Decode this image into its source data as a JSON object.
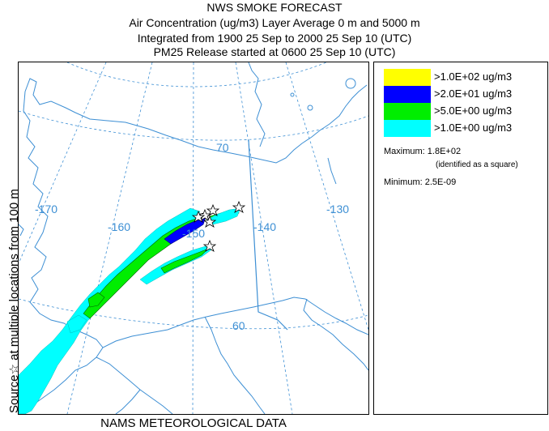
{
  "header": {
    "title": "NWS SMOKE FORECAST",
    "line2": "Air Concentration (ug/m3) Layer Average    0 m and  5000 m",
    "line3": "Integrated from 1900 25 Sep to 2000 25 Sep 10 (UTC)",
    "line4": "PM25 Release started at 0600 25 Sep 10 (UTC)"
  },
  "side_label": "Source☆  at multiple locations   from   100 m",
  "footer": "NAMS METEOROLOGICAL DATA",
  "map": {
    "longitude_labels": [
      "-170",
      "-160",
      "-150",
      "-140",
      "-130"
    ],
    "latitude_labels": [
      "70",
      "60"
    ],
    "colors": {
      "coast": "#3d8fd4",
      "grid": "#3d8fd4",
      "graticule_label": "#3d8fd4"
    }
  },
  "legend": {
    "items": [
      {
        "label": ">1.0E+02 ug/m3",
        "color": "#ffff00"
      },
      {
        "label": ">2.0E+01 ug/m3",
        "color": "#0000ff"
      },
      {
        "label": ">5.0E+00 ug/m3",
        "color": "#00ee00"
      },
      {
        "label": ">1.0E+00 ug/m3",
        "color": "#00ffff"
      }
    ],
    "maximum": "Maximum: 1.8E+02",
    "maximum_note": "(identified as a square)",
    "minimum": "Minimum: 2.5E-09"
  }
}
